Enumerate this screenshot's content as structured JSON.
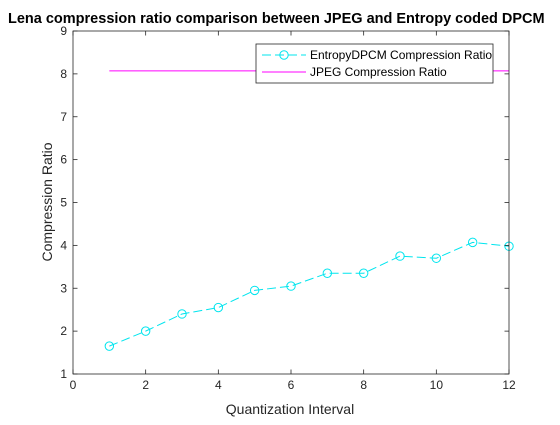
{
  "chart_data": {
    "type": "line",
    "title": "Lena compression ratio comparison between JPEG and Entropy coded DPCM",
    "xlabel": "Quantization Interval",
    "ylabel": "Compression Ratio",
    "xlim": [
      0,
      12
    ],
    "ylim": [
      1,
      9
    ],
    "xticks": [
      0,
      2,
      4,
      6,
      8,
      10,
      12
    ],
    "yticks": [
      1,
      2,
      3,
      4,
      5,
      6,
      7,
      8,
      9
    ],
    "grid": false,
    "legend_position": "top-right",
    "series": [
      {
        "name": "EntropyDPCM Compression Ratio",
        "color": "#00e5ee",
        "line_style": "dashed",
        "marker": "circle",
        "x": [
          1,
          2,
          3,
          4,
          5,
          6,
          7,
          8,
          9,
          10,
          11,
          12
        ],
        "y": [
          1.65,
          2.0,
          2.4,
          2.55,
          2.95,
          3.05,
          3.35,
          3.35,
          3.75,
          3.7,
          4.07,
          3.98
        ]
      },
      {
        "name": "JPEG Compression Ratio",
        "color": "#ff00ff",
        "line_style": "solid",
        "marker": "none",
        "x": [
          1,
          12
        ],
        "y": [
          8.07,
          8.07
        ]
      }
    ]
  }
}
